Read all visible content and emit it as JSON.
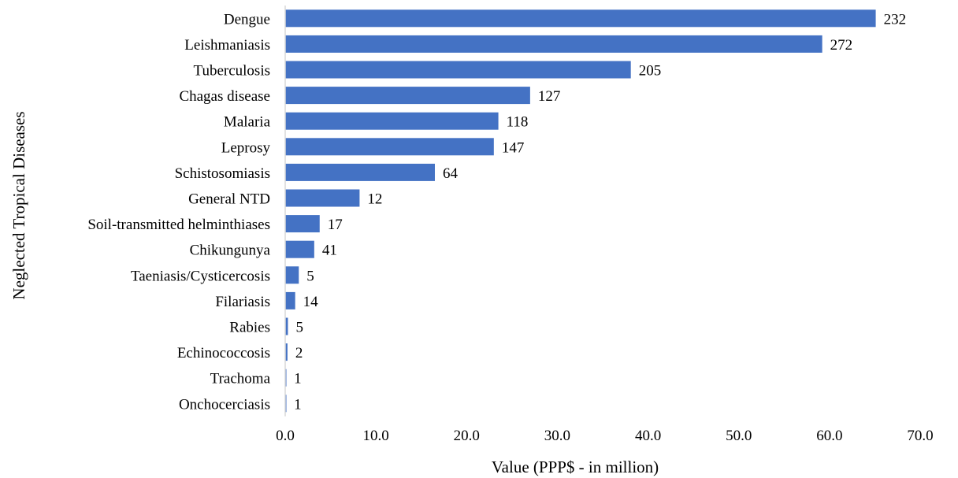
{
  "chart_data": {
    "type": "bar",
    "orientation": "horizontal",
    "categories": [
      "Dengue",
      "Leishmaniasis",
      "Tuberculosis",
      "Chagas disease",
      "Malaria",
      "Leprosy",
      "Schistosomiasis",
      "General NTD",
      "Soil-transmitted helminthiases",
      "Chikungunya",
      "Taeniasis/Cysticercosis",
      "Filariasis",
      "Rabies",
      "Echinococcosis",
      "Trachoma",
      "Onchocerciasis"
    ],
    "values": [
      65.1,
      59.2,
      38.1,
      27.0,
      23.5,
      23.0,
      16.5,
      8.2,
      3.8,
      3.2,
      1.5,
      1.1,
      0.3,
      0.25,
      0.1,
      0.1
    ],
    "data_labels": [
      "232",
      "272",
      "205",
      "127",
      "118",
      "147",
      "64",
      "12",
      "17",
      "41",
      "5",
      "14",
      "5",
      "2",
      "1",
      "1"
    ],
    "xlabel": "Value (PPP$ - in million)",
    "ylabel": "Neglected Tropical Diseases",
    "xlim": [
      0,
      70
    ],
    "xticks": [
      "0.0",
      "10.0",
      "20.0",
      "30.0",
      "40.0",
      "50.0",
      "60.0",
      "70.0"
    ],
    "grid": false,
    "legend": "none",
    "bar_color": "#4472C4",
    "axis_color": "#d9d9d9"
  }
}
